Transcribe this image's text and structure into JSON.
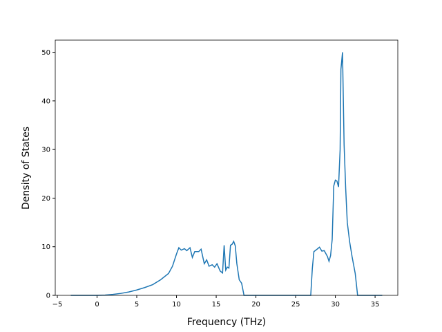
{
  "chart_data": {
    "type": "line",
    "xlabel": "Frequency (THz)",
    "ylabel": "Density of States",
    "x": [
      -3.3,
      0,
      1,
      2,
      3,
      4,
      5,
      6,
      7,
      8,
      9,
      9.5,
      10,
      10.3,
      10.6,
      11,
      11.3,
      11.7,
      12,
      12.3,
      12.8,
      13.1,
      13.5,
      13.8,
      14.1,
      14.5,
      14.8,
      15.1,
      15.5,
      15.8,
      16,
      16.2,
      16.4,
      16.6,
      16.8,
      17,
      17.2,
      17.4,
      17.6,
      17.9,
      18.2,
      18.5,
      26.9,
      27.1,
      27.3,
      27.7,
      28,
      28.3,
      28.6,
      29,
      29.2,
      29.4,
      29.6,
      29.8,
      30,
      30.2,
      30.4,
      30.6,
      30.7,
      30.9,
      31.1,
      31.3,
      31.5,
      31.8,
      32.1,
      32.5,
      32.8,
      35.9
    ],
    "series": [
      {
        "color": "#1f77b4",
        "values": [
          0,
          0,
          0.05,
          0.2,
          0.4,
          0.7,
          1.1,
          1.6,
          2.2,
          3.2,
          4.5,
          6,
          8.5,
          9.8,
          9.3,
          9.6,
          9.2,
          9.8,
          7.8,
          9.0,
          9.0,
          9.5,
          6.5,
          7.3,
          6.0,
          6.3,
          5.8,
          6.5,
          5.0,
          4.6,
          10.3,
          5.2,
          5.8,
          5.6,
          10.3,
          10.5,
          11.1,
          10.2,
          6.5,
          3.2,
          2.5,
          0,
          0,
          5.5,
          9.0,
          9.5,
          9.9,
          9.1,
          9.2,
          8.0,
          7.0,
          8.2,
          11.5,
          22.5,
          23.7,
          23.5,
          22.3,
          30,
          46.5,
          50,
          31,
          22,
          15,
          11,
          8,
          4.5,
          0,
          0
        ]
      }
    ],
    "xlim": [
      -5.26,
      37.86
    ],
    "ylim": [
      0,
      52.5
    ],
    "xticks": [
      {
        "value": -5,
        "label": "−5"
      },
      0,
      5,
      10,
      15,
      20,
      25,
      30,
      35
    ],
    "yticks": [
      0,
      10,
      20,
      30,
      40,
      50
    ]
  }
}
